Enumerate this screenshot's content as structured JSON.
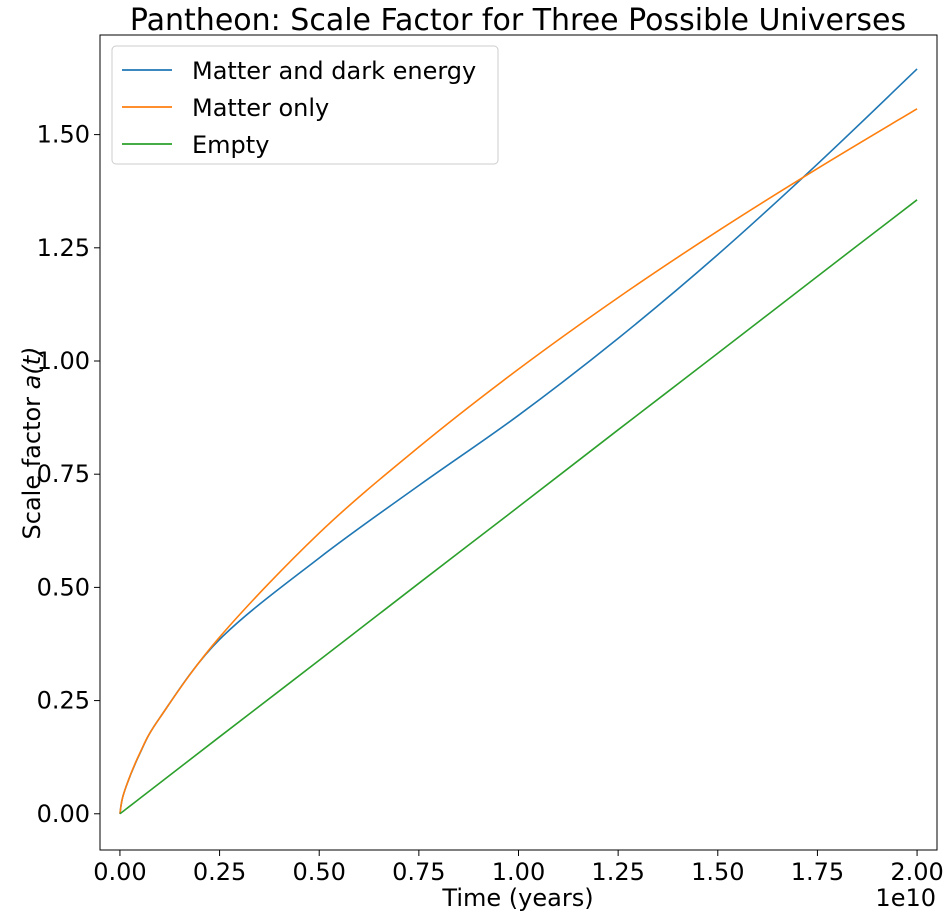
{
  "chart_data": {
    "type": "line",
    "title": "Pantheon: Scale Factor for Three Possible Universes",
    "xlabel": "Time (years)",
    "ylabel_prefix": "Scale factor ",
    "ylabel_math": "a(t)",
    "x_offset_label": "1e10",
    "x_range": [
      -0.05,
      2.05
    ],
    "y_range": [
      -0.08,
      1.72
    ],
    "x_ticks": [
      0.0,
      0.25,
      0.5,
      0.75,
      1.0,
      1.25,
      1.5,
      1.75,
      2.0
    ],
    "x_tick_labels": [
      "0.00",
      "0.25",
      "0.50",
      "0.75",
      "1.00",
      "1.25",
      "1.50",
      "1.75",
      "2.00"
    ],
    "y_ticks": [
      0.0,
      0.25,
      0.5,
      0.75,
      1.0,
      1.25,
      1.5
    ],
    "y_tick_labels": [
      "0.00",
      "0.25",
      "0.50",
      "0.75",
      "1.00",
      "1.25",
      "1.50"
    ],
    "grid": false,
    "legend_position": "upper-left",
    "x": [
      0.0,
      0.01,
      0.05,
      0.1,
      0.25,
      0.5,
      0.75,
      1.0,
      1.25,
      1.5,
      1.75,
      2.0
    ],
    "series": [
      {
        "name": "Matter and dark energy",
        "color": "#1f77b4",
        "values": [
          0.0,
          0.046,
          0.133,
          0.212,
          0.385,
          0.565,
          0.725,
          0.88,
          1.05,
          1.235,
          1.435,
          1.645
        ]
      },
      {
        "name": "Matter only",
        "color": "#ff7f0e",
        "values": [
          0.0,
          0.046,
          0.134,
          0.212,
          0.39,
          0.62,
          0.81,
          0.982,
          1.14,
          1.287,
          1.425,
          1.557
        ]
      },
      {
        "name": "Empty",
        "color": "#2ca02c",
        "values": [
          0.0,
          0.0068,
          0.034,
          0.068,
          0.17,
          0.339,
          0.509,
          0.678,
          0.848,
          1.017,
          1.187,
          1.356
        ]
      }
    ]
  }
}
